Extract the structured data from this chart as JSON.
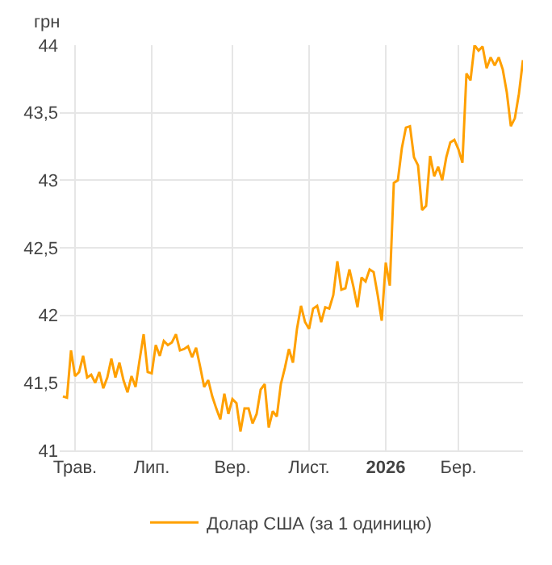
{
  "chart_data": {
    "type": "line",
    "ylabel": "грн",
    "legend": "bottom",
    "grid": true,
    "marker": "none",
    "line_style": "solid",
    "categories": [
      null,
      null,
      null,
      "Трав.",
      null,
      null,
      null,
      null,
      null,
      null,
      null,
      null,
      null,
      null,
      null,
      null,
      null,
      null,
      null,
      null,
      null,
      null,
      "Лип.",
      null,
      null,
      null,
      null,
      null,
      null,
      null,
      null,
      null,
      null,
      null,
      null,
      null,
      null,
      null,
      null,
      null,
      null,
      null,
      "Вер.",
      null,
      null,
      null,
      null,
      null,
      null,
      null,
      null,
      null,
      null,
      null,
      null,
      null,
      null,
      null,
      null,
      null,
      null,
      "Лист.",
      null,
      null,
      null,
      null,
      null,
      null,
      null,
      null,
      null,
      null,
      null,
      null,
      null,
      null,
      null,
      null,
      null,
      null,
      "2026",
      null,
      null,
      null,
      null,
      null,
      null,
      null,
      null,
      null,
      null,
      null,
      null,
      null,
      null,
      null,
      null,
      null,
      "Бер.",
      null,
      null,
      null,
      null,
      null,
      null,
      null,
      null,
      null,
      null,
      null,
      null,
      null,
      null,
      null,
      null
    ],
    "ylim": [
      41,
      44
    ],
    "yticks": [
      41,
      {
        "value": 41.5,
        "label": "41,5"
      },
      42,
      {
        "value": 42.5,
        "label": "42,5"
      },
      43,
      {
        "value": 43.5,
        "label": "43,5"
      },
      44
    ],
    "series": [
      {
        "name": "Долар США (за 1 одиницю)",
        "color": "#ffa000",
        "values": [
          41.4,
          41.39,
          41.74,
          41.55,
          41.58,
          41.7,
          41.54,
          41.56,
          41.5,
          41.58,
          41.46,
          41.54,
          41.68,
          41.54,
          41.65,
          41.52,
          41.43,
          41.55,
          41.47,
          41.67,
          41.86,
          41.58,
          41.57,
          41.78,
          41.7,
          41.81,
          41.78,
          41.8,
          41.86,
          41.74,
          41.75,
          41.77,
          41.69,
          41.76,
          41.62,
          41.47,
          41.52,
          41.4,
          41.31,
          41.23,
          41.42,
          41.27,
          41.38,
          41.35,
          41.14,
          41.31,
          41.31,
          41.2,
          41.27,
          41.45,
          41.49,
          41.17,
          41.29,
          41.25,
          41.49,
          41.61,
          41.75,
          41.65,
          41.9,
          42.07,
          41.95,
          41.9,
          42.05,
          42.07,
          41.95,
          42.06,
          42.05,
          42.15,
          42.4,
          42.19,
          42.2,
          42.34,
          42.21,
          42.06,
          42.28,
          42.25,
          42.34,
          42.32,
          42.15,
          41.96,
          42.39,
          42.22,
          42.98,
          43.0,
          43.24,
          43.39,
          43.4,
          43.17,
          43.11,
          42.78,
          42.81,
          43.18,
          43.03,
          43.1,
          43.0,
          43.17,
          43.28,
          43.3,
          43.23,
          43.13,
          43.79,
          43.74,
          44.0,
          43.96,
          43.99,
          43.83,
          43.91,
          43.85,
          43.91,
          43.82,
          43.65,
          43.4,
          43.46,
          43.64,
          43.89
        ]
      }
    ]
  }
}
